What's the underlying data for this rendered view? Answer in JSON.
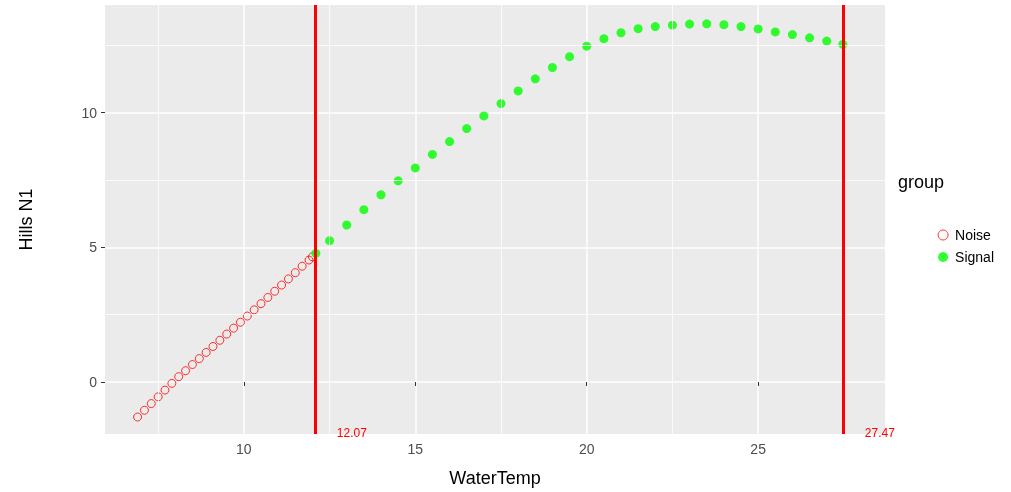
{
  "chart_data": {
    "type": "scatter",
    "xlabel": "WaterTemp",
    "ylabel": "Hills N1",
    "legend_title": "group",
    "legend": "right",
    "grid": true,
    "marker": "circle",
    "xlim": [
      5.95,
      28.7
    ],
    "ylim": [
      -1.93,
      14
    ],
    "xticks": [
      {
        "value": 7.5,
        "label": null
      },
      10,
      {
        "value": 12.5,
        "label": null
      },
      15,
      {
        "value": 17.5,
        "label": null
      },
      20,
      {
        "value": 22.5,
        "label": null
      },
      25,
      {
        "value": 27.5,
        "label": null
      }
    ],
    "yticks": [
      0,
      {
        "value": 2.5,
        "label": null
      },
      5,
      {
        "value": 7.5,
        "label": null
      },
      10,
      {
        "value": 12.5,
        "label": null
      }
    ],
    "series": [
      {
        "name": "Noise",
        "color": "#ff0000",
        "marker": "emptyCircle",
        "x": [
          6.9,
          7.1,
          7.3,
          7.5,
          7.7,
          7.9,
          8.1,
          8.3,
          8.5,
          8.7,
          8.9,
          9.1,
          9.3,
          9.5,
          9.7,
          9.9,
          10.1,
          10.3,
          10.5,
          10.7,
          10.9,
          11.1,
          11.3,
          11.5,
          11.7,
          11.9,
          12.0
        ],
        "values": [
          -1.3,
          -1.05,
          -0.8,
          -0.55,
          -0.3,
          -0.05,
          0.2,
          0.42,
          0.65,
          0.87,
          1.1,
          1.32,
          1.55,
          1.78,
          2.0,
          2.22,
          2.45,
          2.68,
          2.91,
          3.14,
          3.37,
          3.6,
          3.83,
          4.06,
          4.3,
          4.53,
          4.65
        ]
      },
      {
        "name": "Signal",
        "color": "#00ff00",
        "x": [
          12.1,
          12.5,
          13,
          13.5,
          14,
          14.5,
          15,
          15.5,
          16,
          16.5,
          17,
          17.5,
          18,
          18.5,
          19,
          19.5,
          20,
          20.5,
          21,
          21.5,
          22,
          22.5,
          23,
          23.5,
          24,
          24.5,
          25,
          25.5,
          26,
          26.5,
          27,
          27.47
        ],
        "values": [
          4.78,
          5.25,
          5.83,
          6.4,
          6.95,
          7.47,
          7.95,
          8.45,
          8.93,
          9.41,
          9.88,
          10.34,
          10.81,
          11.26,
          11.68,
          12.08,
          12.47,
          12.75,
          12.97,
          13.12,
          13.2,
          13.25,
          13.29,
          13.3,
          13.27,
          13.2,
          13.11,
          13.0,
          12.9,
          12.78,
          12.66,
          12.54
        ]
      }
    ],
    "ref_lines": [
      {
        "axis": "x",
        "value": 12.07,
        "label": "12.07",
        "color": "#ff0000"
      },
      {
        "axis": "x",
        "value": 27.47,
        "label": "27.47",
        "color": "#ff0000"
      }
    ]
  }
}
